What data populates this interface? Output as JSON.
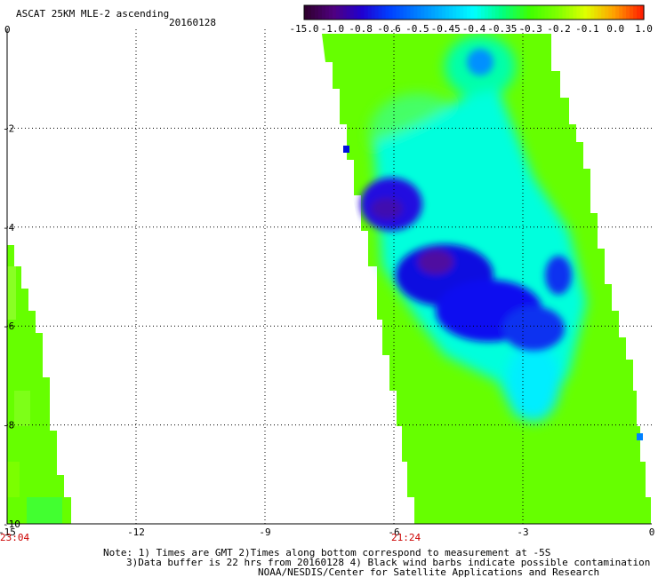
{
  "title": "ASCAT 25KM MLE-2 ascending",
  "date": "20160128",
  "colorbar": {
    "labels": [
      "-15.0",
      "-1.0",
      "-0.8",
      "-0.6",
      "-0.5",
      "-0.45",
      "-0.4",
      "-0.35",
      "-0.3",
      "-0.2",
      "-0.1",
      "0.0",
      "1.0"
    ],
    "colors": [
      "#300030",
      "#500080",
      "#2000d0",
      "#0040ff",
      "#0080ff",
      "#00c0ff",
      "#00ffff",
      "#00ff80",
      "#40ff00",
      "#80ff00",
      "#e0ff00",
      "#ffa000",
      "#ff2000"
    ]
  },
  "axes": {
    "x_ticks": [
      "-15",
      "-12",
      "-9",
      "-6",
      "-3",
      "0"
    ],
    "y_ticks": [
      "0",
      "-2",
      "-4",
      "-6",
      "-8",
      "-10"
    ]
  },
  "time_labels": [
    "23:04",
    "21:24"
  ],
  "colors": {
    "time_label": "#cc0000",
    "grid": "#000000",
    "swath_base": "#66ff00"
  },
  "notes": [
    "Note: 1) Times are GMT 2)Times along bottom correspond to measurement at -5S",
    "3)Data buffer is 22 hrs from 20160128 4) Black wind barbs indicate possible contamination",
    "NOAA/NESDIS/Center for Satellite Applications and Research"
  ]
}
